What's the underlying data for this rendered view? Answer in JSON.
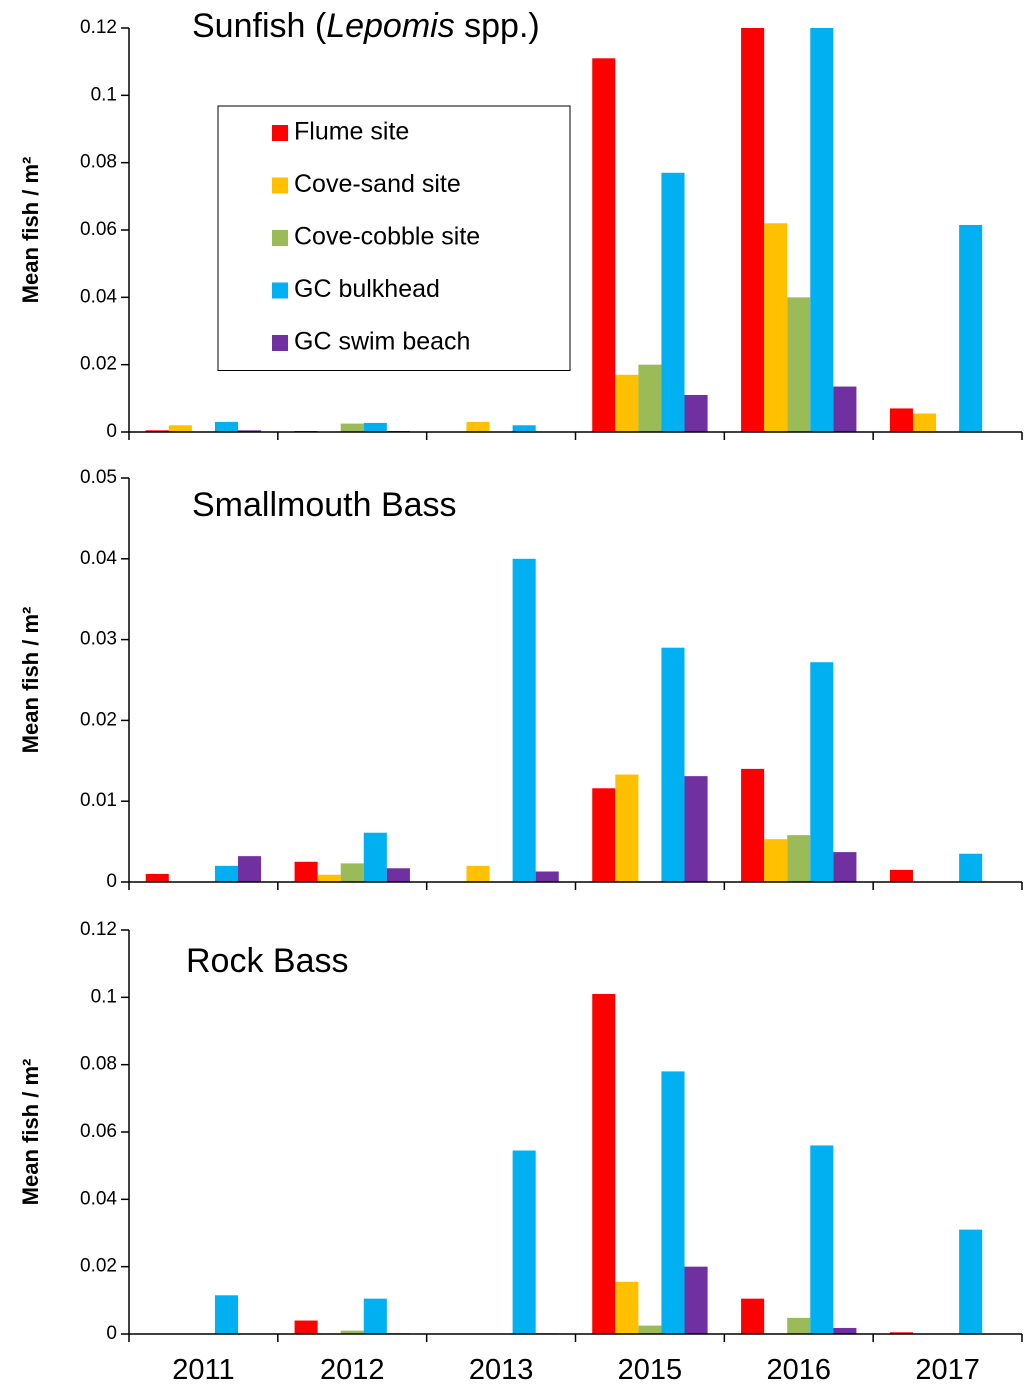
{
  "chart_data": [
    {
      "type": "bar",
      "title_parts": [
        {
          "text": "Sunfish (",
          "italic": false
        },
        {
          "text": "Lepomis",
          "italic": true
        },
        {
          "text": " spp.)",
          "italic": false
        }
      ],
      "y_label": "Mean fish / m²",
      "categories": [
        null,
        null,
        null,
        null,
        null,
        null
      ],
      "ylim": [
        0,
        0.12
      ],
      "yticks": [
        0,
        0.02,
        0.04,
        0.06,
        0.08,
        0.1,
        0.12
      ],
      "legend": "upper left",
      "series": [
        {
          "name": "Flume site",
          "color": "#ff0000",
          "values": [
            0.0005,
            0.0003,
            0,
            0.111,
            0.12,
            0.007
          ]
        },
        {
          "name": "Cove-sand site",
          "color": "#ffc000",
          "values": [
            0.002,
            0,
            0.003,
            0.017,
            0.062,
            0.0055
          ]
        },
        {
          "name": "Cove-cobble site",
          "color": "#9bbb59",
          "values": [
            0,
            0.0025,
            0,
            0.02,
            0.04,
            0
          ]
        },
        {
          "name": "GC bulkhead",
          "color": "#00b0f0",
          "values": [
            0.003,
            0.0027,
            0.002,
            0.077,
            0.12,
            0.0615
          ]
        },
        {
          "name": "GC swim beach",
          "color": "#7030a0",
          "values": [
            0.0005,
            0.0003,
            0,
            0.011,
            0.0135,
            0
          ]
        }
      ]
    },
    {
      "type": "bar",
      "title_parts": [
        {
          "text": "Smallmouth Bass",
          "italic": false
        }
      ],
      "y_label": "Mean fish / m²",
      "categories": [
        null,
        null,
        null,
        null,
        null,
        null
      ],
      "ylim": [
        0,
        0.05
      ],
      "yticks": [
        0,
        0.01,
        0.02,
        0.03,
        0.04,
        0.05
      ],
      "series": [
        {
          "color": "#ff0000",
          "values": [
            0.001,
            0.0025,
            0,
            0.0116,
            0.014,
            0.0015
          ]
        },
        {
          "color": "#ffc000",
          "values": [
            0,
            0.0009,
            0.002,
            0.0133,
            0.0053,
            0
          ]
        },
        {
          "color": "#9bbb59",
          "values": [
            0,
            0.0023,
            0,
            0,
            0.0058,
            0
          ]
        },
        {
          "color": "#00b0f0",
          "values": [
            0.002,
            0.0061,
            0.04,
            0.029,
            0.0272,
            0.0035
          ]
        },
        {
          "color": "#7030a0",
          "values": [
            0.0032,
            0.0017,
            0.0013,
            0.0131,
            0.0037,
            0
          ]
        }
      ]
    },
    {
      "type": "bar",
      "title_parts": [
        {
          "text": "Rock Bass",
          "italic": false
        }
      ],
      "y_label": "Mean fish / m²",
      "categories": [
        "2011",
        "2012",
        "2013",
        "2015",
        "2016",
        "2017"
      ],
      "ylim": [
        0,
        0.12
      ],
      "yticks": [
        0,
        0.02,
        0.04,
        0.06,
        0.08,
        0.1,
        0.12
      ],
      "series": [
        {
          "color": "#ff0000",
          "values": [
            0,
            0.004,
            0,
            0.101,
            0.0105,
            0.0005
          ]
        },
        {
          "color": "#ffc000",
          "values": [
            0,
            0,
            0,
            0.0155,
            0,
            0
          ]
        },
        {
          "color": "#9bbb59",
          "values": [
            0,
            0.001,
            0,
            0.0025,
            0.0048,
            0
          ]
        },
        {
          "color": "#00b0f0",
          "values": [
            0.0115,
            0.0105,
            0.0545,
            0.078,
            0.056,
            0.031
          ]
        },
        {
          "color": "#7030a0",
          "values": [
            0,
            0.0002,
            0.0002,
            0.02,
            0.0018,
            0
          ]
        }
      ]
    }
  ]
}
